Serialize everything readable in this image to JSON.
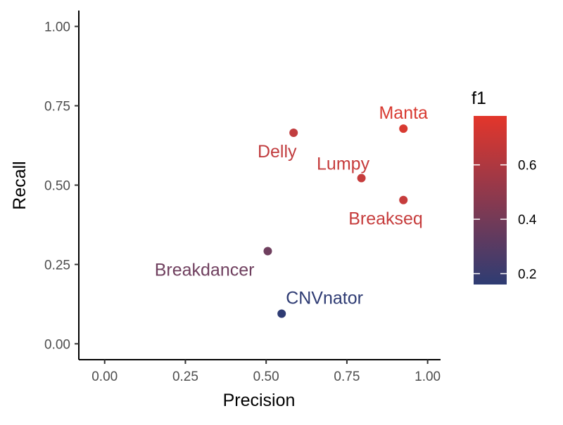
{
  "chart_data": {
    "type": "scatter",
    "xlabel": "Precision",
    "ylabel": "Recall",
    "xlim": [
      -0.08,
      1.04
    ],
    "ylim": [
      -0.05,
      1.05
    ],
    "x_ticks": [
      0.0,
      0.25,
      0.5,
      0.75,
      1.0
    ],
    "x_tick_labels": [
      "0.00",
      "0.25",
      "0.50",
      "0.75",
      "1.00"
    ],
    "y_ticks": [
      0.0,
      0.25,
      0.5,
      0.75,
      1.0
    ],
    "y_tick_labels": [
      "0.00",
      "0.25",
      "0.50",
      "0.75",
      "1.00"
    ],
    "grid": false,
    "legend": {
      "title": "f1",
      "placement": "right",
      "type": "colorbar",
      "range": [
        0.16,
        0.78
      ],
      "low_color": "#2E3C73",
      "high_color": "#E3362B",
      "ticks": [
        0.2,
        0.4,
        0.6
      ],
      "tick_labels": [
        "0.2",
        "0.4",
        "0.6"
      ]
    },
    "points": [
      {
        "label": "Manta",
        "x": 0.925,
        "y": 0.678,
        "f1": 0.78,
        "color": "#D83A31",
        "label_pos": "above"
      },
      {
        "label": "Delly",
        "x": 0.585,
        "y": 0.665,
        "f1": 0.62,
        "color": "#C13D3F",
        "label_pos": "below-left"
      },
      {
        "label": "Lumpy",
        "x": 0.795,
        "y": 0.522,
        "f1": 0.63,
        "color": "#C63C3C",
        "label_pos": "above-left"
      },
      {
        "label": "Breakseq",
        "x": 0.925,
        "y": 0.453,
        "f1": 0.62,
        "color": "#C63C3C",
        "label_pos": "below-left"
      },
      {
        "label": "Breakdancer",
        "x": 0.505,
        "y": 0.292,
        "f1": 0.37,
        "color": "#6F3F5E",
        "label_pos": "below-left"
      },
      {
        "label": "CNVnator",
        "x": 0.548,
        "y": 0.095,
        "f1": 0.17,
        "color": "#2E3B73",
        "label_pos": "above-right"
      }
    ]
  }
}
